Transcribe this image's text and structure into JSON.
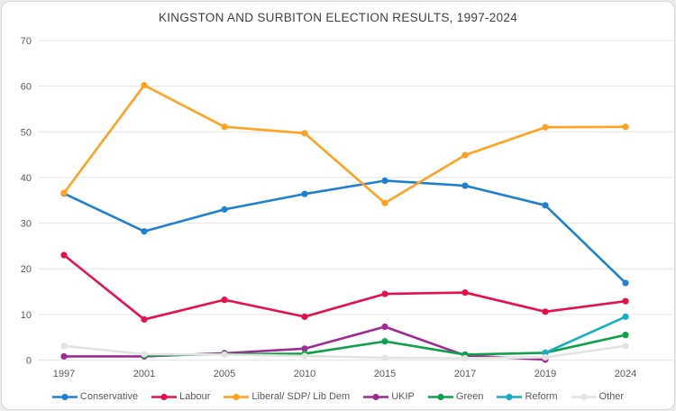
{
  "title": "KINGSTON AND SURBITON ELECTION RESULTS, 1997-2024",
  "chart_data": {
    "type": "line",
    "title": "KINGSTON AND SURBITON ELECTION RESULTS, 1997-2024",
    "categories": [
      "1997",
      "2001",
      "2005",
      "2010",
      "2015",
      "2017",
      "2019",
      "2024"
    ],
    "series": [
      {
        "name": "Conservative",
        "color": "#1f80d0",
        "values": [
          36.5,
          28.2,
          33.0,
          36.4,
          39.3,
          38.2,
          33.9,
          16.9
        ]
      },
      {
        "name": "Labour",
        "color": "#e6104c",
        "values": [
          23.0,
          8.9,
          13.2,
          9.5,
          14.5,
          14.8,
          10.6,
          12.9
        ]
      },
      {
        "name": "Liberal/ SDP/ Lib Dem",
        "color": "#ffa21f",
        "values": [
          36.6,
          60.2,
          51.1,
          49.7,
          34.4,
          44.9,
          51.0,
          51.1
        ]
      },
      {
        "name": "UKIP",
        "color": "#a02b93",
        "values": [
          0.8,
          0.8,
          1.5,
          2.5,
          7.3,
          1.0,
          0.1,
          null
        ]
      },
      {
        "name": "Green",
        "color": "#0ea04a",
        "values": [
          null,
          1.0,
          1.3,
          1.4,
          4.1,
          1.2,
          1.6,
          5.5
        ]
      },
      {
        "name": "Reform",
        "color": "#18aec2",
        "values": [
          null,
          null,
          null,
          null,
          null,
          null,
          1.6,
          9.5
        ]
      },
      {
        "name": "Other",
        "color": "#e3e3df",
        "values": [
          3.1,
          1.3,
          1.2,
          0.9,
          0.5,
          0.4,
          0.6,
          3.1
        ]
      }
    ],
    "xlabel": "",
    "ylabel": "",
    "ylim": [
      0,
      70
    ],
    "ytick_step": 10,
    "yticks": [
      "0",
      "10",
      "20",
      "30",
      "40",
      "50",
      "60",
      "70"
    ],
    "grid": "horizontal",
    "legend_position": "bottom"
  },
  "colors": {
    "gridline": "#e4e4e4",
    "tick_text": "#595959",
    "title_text": "#3f3f3f"
  }
}
